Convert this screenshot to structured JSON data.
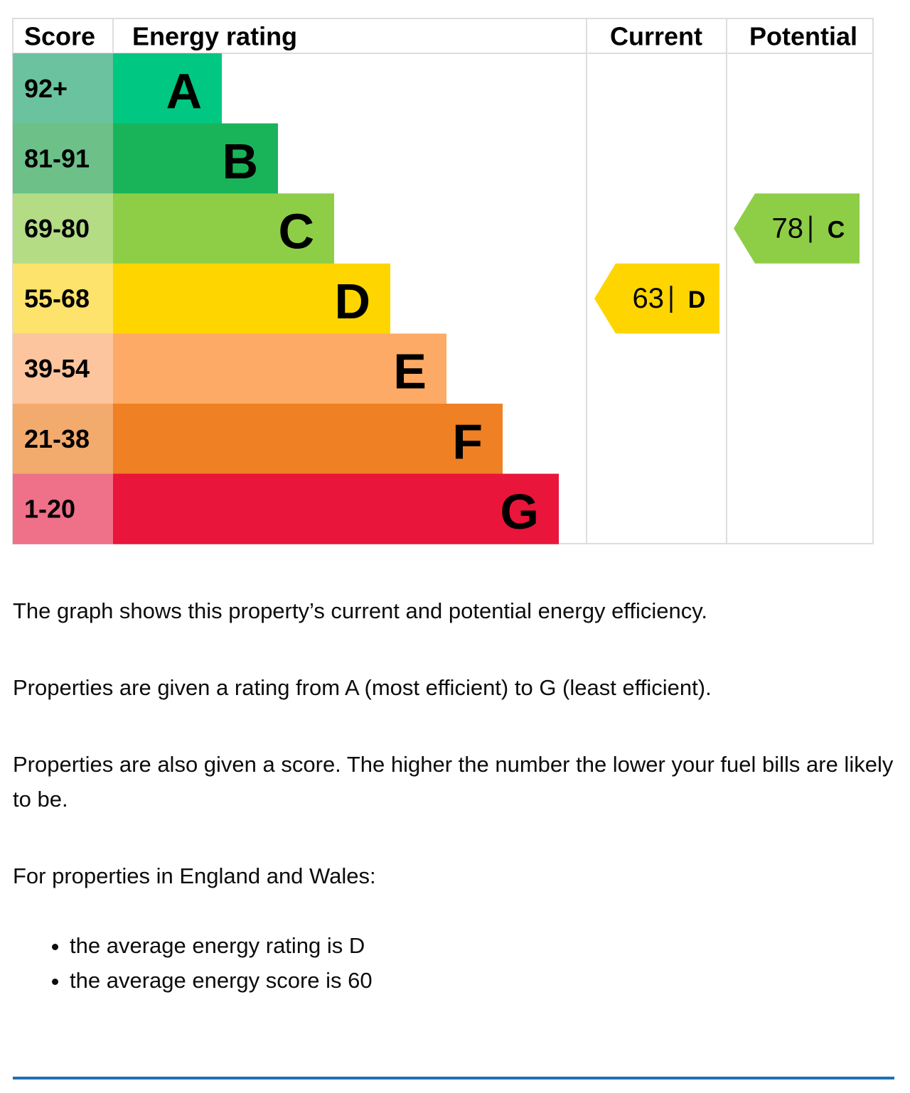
{
  "header": {
    "score": "Score",
    "energy_rating": "Energy rating",
    "current": "Current",
    "potential": "Potential"
  },
  "bands": [
    {
      "score": "92+",
      "letter": "A",
      "score_color": "#6ac39e",
      "color": "#00c781"
    },
    {
      "score": "81-91",
      "letter": "B",
      "score_color": "#6cc088",
      "color": "#19b459"
    },
    {
      "score": "69-80",
      "letter": "C",
      "score_color": "#b3dc85",
      "color": "#8dce46"
    },
    {
      "score": "55-68",
      "letter": "D",
      "score_color": "#fde26b",
      "color": "#ffd500"
    },
    {
      "score": "39-54",
      "letter": "E",
      "score_color": "#fdc59d",
      "color": "#fcaa65"
    },
    {
      "score": "21-38",
      "letter": "F",
      "score_color": "#f3aa6d",
      "color": "#ef8023"
    },
    {
      "score": "1-20",
      "letter": "G",
      "score_color": "#ef7089",
      "color": "#e9153b"
    }
  ],
  "current": {
    "score": 63,
    "rating": "D"
  },
  "potential": {
    "score": 78,
    "rating": "C"
  },
  "paragraphs": [
    "The graph shows this property’s current and potential energy efficiency.",
    "Properties are given a rating from A (most efficient) to G (least efficient).",
    "Properties are also given a score. The higher the number the lower your fuel bills are likely to be.",
    "For properties in England and Wales:"
  ],
  "bullets": [
    "the average energy rating is D",
    "the average energy score is 60"
  ]
}
